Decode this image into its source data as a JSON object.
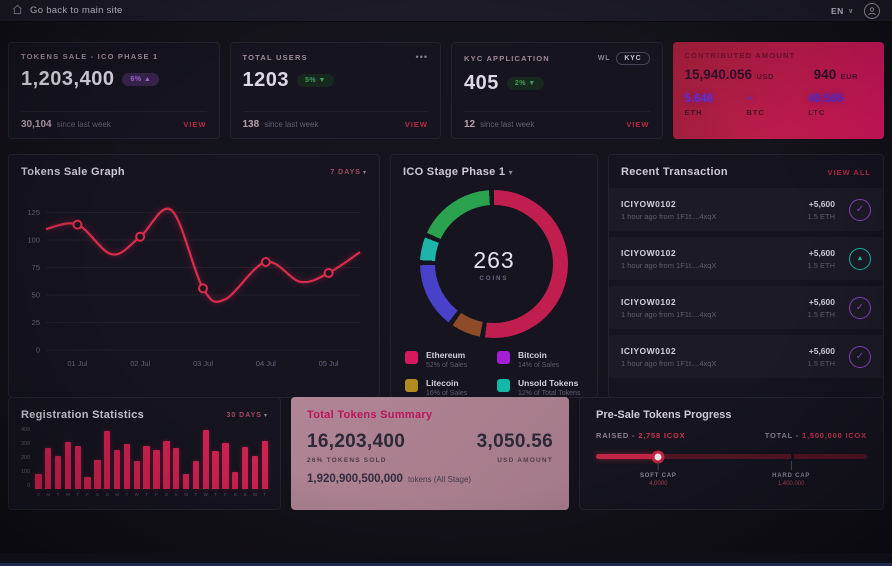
{
  "topbar": {
    "back_label": "Go back to main site",
    "lang": "EN"
  },
  "cards": {
    "tokens_sale": {
      "label": "TOKENS SALE - ICO PHASE 1",
      "value": "1,203,400",
      "badge": "6% ▲",
      "delta": "30,104",
      "since": "since last week",
      "view": "VIEW"
    },
    "total_users": {
      "label": "TOTAL USERS",
      "menu": "•••",
      "value": "1203",
      "badge": "5% ▼",
      "delta": "138",
      "since": "since last week",
      "view": "VIEW"
    },
    "kyc": {
      "label": "KYC APPLICATION",
      "tag1": "WL",
      "tag2": "KYC",
      "value": "405",
      "badge": "2% ▼",
      "delta": "12",
      "since": "since last week",
      "view": "VIEW"
    },
    "contributed": {
      "label": "CONTRIBUTED AMOUNT",
      "usd_value": "15,940.056",
      "usd_unit": "USD",
      "eur_value": "940",
      "eur_unit": "EUR",
      "coins": [
        {
          "value": "5.646",
          "label": "ETH"
        },
        {
          "value": "~",
          "label": "BTC"
        },
        {
          "value": "40.506",
          "label": "LTC"
        }
      ]
    }
  },
  "panels": {
    "sales_graph": {
      "title": "Tokens Sale Graph",
      "range": "7 DAYS"
    },
    "ico_stage": {
      "title": "ICO Stage Phase 1",
      "center_value": "263",
      "center_label": "COINS"
    },
    "transactions": {
      "title": "Recent Transaction",
      "view_all": "VIEW ALL",
      "rows": [
        {
          "id": "ICIYOW0102",
          "meta": "1 hour ago from 1F1t....4xqX",
          "amount": "+5,600",
          "eth": "1.5 ETH",
          "icon": "check",
          "icon_color": "#8e44c8"
        },
        {
          "id": "ICIYOW0102",
          "meta": "1 hour ago from 1F1t....4xqX",
          "amount": "+5,600",
          "eth": "1.5 ETH",
          "icon": "triangle",
          "icon_color": "#19b9ac"
        },
        {
          "id": "ICIYOW0102",
          "meta": "1 hour ago from 1F1t....4xqX",
          "amount": "+5,600",
          "eth": "1.5 ETH",
          "icon": "check",
          "icon_color": "#8e44c8"
        },
        {
          "id": "ICIYOW0102",
          "meta": "1 hour ago from 1F1t....4xqX",
          "amount": "+5,600",
          "eth": "1.5 ETH",
          "icon": "check",
          "icon_color": "#8e44c8"
        }
      ]
    },
    "registration": {
      "title": "Registration Statistics",
      "range": "30 DAYS"
    },
    "summary": {
      "title": "Total Tokens Summary",
      "tokens": "16,203,400",
      "tokens_sub": "26% TOKENS SOLD",
      "usd": "3,050.56",
      "usd_sub": "USD AMOUNT",
      "total": "1,920,900,500,000",
      "total_suffix": "tokens  (All Stage)"
    },
    "presale": {
      "title": "Pre-Sale Tokens Progress",
      "raised_label": "RAISED -",
      "raised_value": "2,758 ICOX",
      "total_label": "TOTAL -",
      "total_value": "1,500,000 ICOX",
      "progress_pct": 23,
      "soft_cap": {
        "label": "SOFT CAP",
        "value": "4,0000",
        "pos_pct": 23
      },
      "hard_cap": {
        "label": "HARD CAP",
        "value": "1,400,000",
        "pos_pct": 72
      }
    }
  },
  "chart_data": [
    {
      "type": "line",
      "title": "Tokens Sale Graph",
      "legend_position": "none",
      "grid": true,
      "x_labels": [
        "01 Jul",
        "02 Jul",
        "03 Jul",
        "04 Jul",
        "05 Jul"
      ],
      "y_ticks": [
        0,
        25,
        50,
        75,
        100,
        125
      ],
      "ylim": [
        0,
        140
      ],
      "series": [
        {
          "name": "Tokens Sold",
          "color": "#dc2b4d",
          "marker_values": [
            114,
            103,
            56,
            80,
            70
          ],
          "curve_points": [
            {
              "f": 0.0,
              "v": 110
            },
            {
              "f": 0.1,
              "v": 114,
              "marker": true
            },
            {
              "f": 0.21,
              "v": 87
            },
            {
              "f": 0.3,
              "v": 103,
              "marker": true
            },
            {
              "f": 0.4,
              "v": 127
            },
            {
              "f": 0.5,
              "v": 56,
              "marker": true
            },
            {
              "f": 0.57,
              "v": 46
            },
            {
              "f": 0.7,
              "v": 80,
              "marker": true
            },
            {
              "f": 0.81,
              "v": 62
            },
            {
              "f": 0.9,
              "v": 70,
              "marker": true
            },
            {
              "f": 1.0,
              "v": 89
            }
          ]
        }
      ]
    },
    {
      "type": "pie",
      "subtype": "donut",
      "title": "ICO Stage Phase 1",
      "center_value": "263",
      "center_label": "COINS",
      "legend": [
        {
          "name": "Ethereum",
          "detail": "52% of Sales",
          "color": "#d6185e"
        },
        {
          "name": "Bitcoin",
          "detail": "14% of Sales",
          "color": "#a21fd6"
        },
        {
          "name": "Litecoin",
          "detail": "16% of Sales",
          "color": "#b28b1e"
        },
        {
          "name": "Unsold Tokens",
          "detail": "12% of Total Tokens",
          "color": "#14b8ab"
        }
      ],
      "segments": [
        {
          "color": "#c01e4f",
          "from": 0,
          "to": 187
        },
        {
          "color": "#8d4b27",
          "from": 191,
          "to": 214
        },
        {
          "color": "#4742c8",
          "from": 218,
          "to": 269
        },
        {
          "color": "#1cb5a8",
          "from": 273,
          "to": 291
        },
        {
          "color": "#2aa24e",
          "from": 295,
          "to": 356
        }
      ],
      "gap_color": "#15141f"
    },
    {
      "type": "bar",
      "title": "Registration Statistics",
      "color": "#ce2150",
      "y_ticks": [
        400,
        300,
        200,
        100,
        0
      ],
      "ylim": [
        0,
        450
      ],
      "labels": [
        "S",
        "M",
        "T",
        "W",
        "T",
        "F",
        "S",
        "S",
        "M",
        "T",
        "W",
        "T",
        "F",
        "S",
        "S",
        "M",
        "T",
        "W",
        "T",
        "F",
        "S",
        "S",
        "M",
        "T"
      ],
      "values": [
        110,
        300,
        240,
        340,
        310,
        90,
        210,
        420,
        280,
        330,
        205,
        310,
        285,
        345,
        300,
        110,
        205,
        430,
        275,
        335,
        120,
        305,
        240,
        345
      ]
    }
  ]
}
